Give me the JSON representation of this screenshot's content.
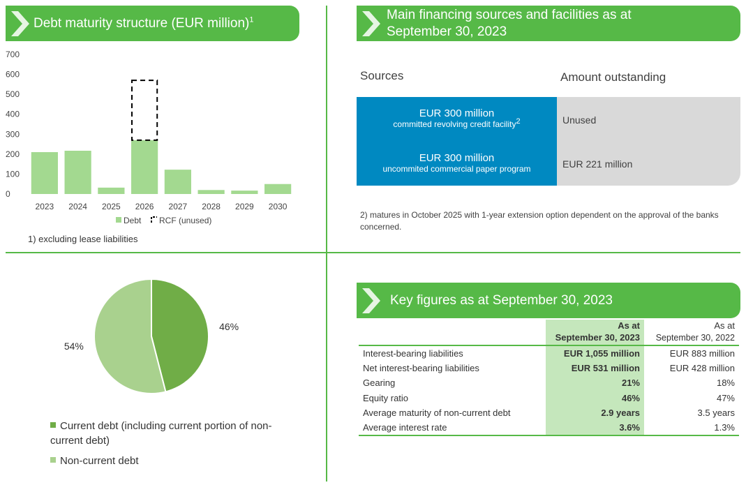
{
  "debt_maturity": {
    "title": "Debt maturity structure (EUR million)",
    "title_sup": "1",
    "footnote": "1) excluding lease liabilities"
  },
  "financing": {
    "title_line1": "Main financing sources and facilities as at",
    "title_line2": "September 30, 2023",
    "col_sources": "Sources",
    "col_amount": "Amount outstanding",
    "rows": [
      {
        "main": "EUR 300 million",
        "sub": "committed revolving credit facility",
        "sub_sup": "2",
        "amount": "Unused"
      },
      {
        "main": "EUR 300 million",
        "sub": "uncommited commercial paper program",
        "amount": "EUR 221 million"
      }
    ],
    "note": "2) matures in October 2025 with 1-year extension option dependent on the approval of the banks concerned."
  },
  "key_figures": {
    "title": "Key figures as at September 30, 2023",
    "col_current_line1": "As at",
    "col_current_line2": "September 30, 2023",
    "col_prev_line1": "As at",
    "col_prev_line2": "September 30, 2022",
    "rows": [
      {
        "label": "Interest-bearing liabilities",
        "current": "EUR 1,055 million",
        "prev": "EUR 883 million"
      },
      {
        "label": "Net interest-bearing liabilities",
        "current": "EUR 531 million",
        "prev": "EUR 428 million"
      },
      {
        "label": "Gearing",
        "current": "21%",
        "prev": "18%"
      },
      {
        "label": "Equity ratio",
        "current": "46%",
        "prev": "47%"
      },
      {
        "label": "Average maturity of non-current debt",
        "current": "2.9 years",
        "prev": "3.5 years"
      },
      {
        "label": "Average interest rate",
        "current": "3.6%",
        "prev": "1.3%"
      }
    ]
  },
  "colors": {
    "accent_green": "#56b947",
    "bar_green": "#a3d990",
    "pie_current": "#70ad47",
    "pie_noncurrent": "#a9d18e",
    "blue": "#0089c1",
    "grey": "#d9d9d9"
  },
  "chart_data": [
    {
      "type": "bar",
      "categories": [
        "2023",
        "2024",
        "2025",
        "2026",
        "2027",
        "2028",
        "2029",
        "2030"
      ],
      "series": [
        {
          "name": "Debt",
          "values": [
            210,
            217,
            32,
            270,
            122,
            20,
            17,
            50
          ]
        },
        {
          "name": "RCF (unused)",
          "values": [
            0,
            0,
            0,
            300,
            0,
            0,
            0,
            0
          ]
        }
      ],
      "stacked": true,
      "yticks": [
        0,
        100,
        200,
        300,
        400,
        500,
        600,
        700
      ],
      "ylim": [
        0,
        700
      ],
      "legend": "bottom",
      "grid": false
    },
    {
      "type": "pie",
      "slices": [
        {
          "label": "Current debt (including current portion of non-current debt)",
          "value": 46,
          "display": "46%"
        },
        {
          "label": "Non-current debt",
          "value": 54,
          "display": "54%"
        }
      ],
      "legend": "bottom"
    }
  ]
}
